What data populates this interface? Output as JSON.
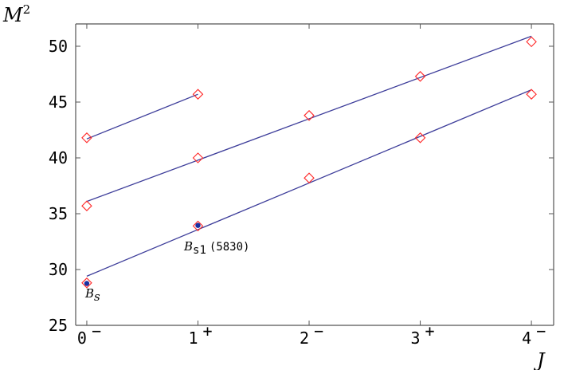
{
  "chart_data": {
    "type": "scatter",
    "title": "",
    "xlabel": "J",
    "ylabel": "M",
    "ylabel_superscript": "2",
    "xlim": [
      -0.1,
      4.2
    ],
    "ylim": [
      25,
      52
    ],
    "grid": false,
    "xticks": [
      {
        "value": 0,
        "label": "0",
        "sup": "−"
      },
      {
        "value": 1,
        "label": "1",
        "sup": "+"
      },
      {
        "value": 2,
        "label": "2",
        "sup": "−"
      },
      {
        "value": 3,
        "label": "3",
        "sup": "+"
      },
      {
        "value": 4,
        "label": "4",
        "sup": "−"
      }
    ],
    "yticks": [
      25,
      30,
      35,
      40,
      45,
      50
    ],
    "colors": {
      "line": "#3d3d9a",
      "marker": "#ff2a2a",
      "experimental": "#1a2fa0",
      "axis": "#555555"
    },
    "lines": [
      {
        "x": [
          0,
          1
        ],
        "y": [
          41.7,
          45.7
        ]
      },
      {
        "x": [
          0,
          4
        ],
        "y": [
          36.1,
          50.9
        ]
      },
      {
        "x": [
          0,
          4
        ],
        "y": [
          29.4,
          46.1
        ]
      }
    ],
    "series": [
      {
        "x": [
          0,
          1
        ],
        "y": [
          41.8,
          45.7
        ]
      },
      {
        "x": [
          0,
          1,
          2,
          3,
          4
        ],
        "y": [
          35.7,
          40.0,
          43.8,
          47.3,
          50.4
        ]
      },
      {
        "x": [
          0,
          1,
          2,
          3,
          4
        ],
        "y": [
          28.8,
          33.9,
          38.2,
          41.8,
          45.7
        ]
      }
    ],
    "experimental_points": [
      {
        "x": 0,
        "y": 28.75,
        "label": "B",
        "label_sub": "s"
      },
      {
        "x": 1,
        "y": 33.95,
        "label": "B",
        "label_sub": "s1",
        "label_suffix": "(5830)"
      }
    ]
  }
}
